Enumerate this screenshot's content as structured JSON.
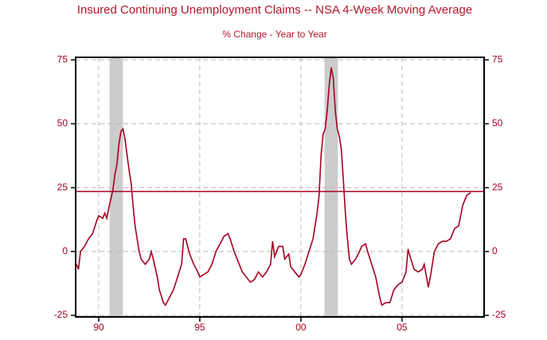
{
  "chart_data": {
    "type": "line",
    "title": "Insured Continuing Unemployment Claims -- NSA 4-Week Moving Average",
    "subtitle": "% Change - Year to Year",
    "x": [
      1988.9,
      1989.0,
      1989.1,
      1989.3,
      1989.5,
      1989.7,
      1989.9,
      1990.0,
      1990.2,
      1990.3,
      1990.4,
      1990.5,
      1990.7,
      1990.8,
      1990.9,
      1991.0,
      1991.1,
      1991.2,
      1991.3,
      1991.4,
      1991.5,
      1991.6,
      1991.7,
      1991.8,
      1991.9,
      1992.0,
      1992.1,
      1992.3,
      1992.5,
      1992.6,
      1992.7,
      1992.9,
      1993.0,
      1993.2,
      1993.3,
      1993.5,
      1993.7,
      1993.9,
      1994.1,
      1994.2,
      1994.3,
      1994.5,
      1994.7,
      1994.9,
      1995.0,
      1995.2,
      1995.4,
      1995.6,
      1995.8,
      1996.0,
      1996.2,
      1996.4,
      1996.5,
      1996.7,
      1996.9,
      1997.1,
      1997.3,
      1997.5,
      1997.7,
      1997.9,
      1998.1,
      1998.3,
      1998.5,
      1998.6,
      1998.7,
      1998.9,
      1999.1,
      1999.2,
      1999.4,
      1999.5,
      1999.7,
      1999.9,
      2000.0,
      2000.2,
      2000.4,
      2000.6,
      2000.8,
      2000.9,
      2001.0,
      2001.1,
      2001.2,
      2001.3,
      2001.4,
      2001.5,
      2001.6,
      2001.7,
      2001.8,
      2001.9,
      2002.0,
      2002.1,
      2002.2,
      2002.3,
      2002.4,
      2002.5,
      2002.7,
      2002.9,
      2003.0,
      2003.2,
      2003.3,
      2003.5,
      2003.7,
      2003.9,
      2004.0,
      2004.2,
      2004.4,
      2004.6,
      2004.8,
      2005.0,
      2005.2,
      2005.3,
      2005.4,
      2005.6,
      2005.8,
      2006.0,
      2006.1,
      2006.3,
      2006.4,
      2006.6,
      2006.8,
      2007.0,
      2007.2,
      2007.4,
      2007.6,
      2007.8,
      2008.0,
      2008.2,
      2008.4
    ],
    "series": [
      {
        "color": "#a50021",
        "values": [
          -5,
          -7,
          0,
          2,
          5,
          7,
          12,
          14,
          13,
          15,
          13,
          17,
          24,
          30,
          34,
          42,
          47,
          48,
          44,
          38,
          32,
          27,
          18,
          10,
          5,
          0,
          -3,
          -5,
          -3,
          0,
          -3,
          -10,
          -15,
          -20,
          -21,
          -18,
          -15,
          -10,
          -5,
          5,
          5,
          -1,
          -5,
          -8,
          -10,
          -9,
          -8,
          -5,
          0,
          3,
          6,
          7,
          5,
          0,
          -4,
          -8,
          -10,
          -12,
          -11,
          -8,
          -10,
          -8,
          -5,
          4,
          -2,
          2,
          2,
          -3,
          -1,
          -6,
          -8,
          -10,
          -9,
          -5,
          0,
          5,
          15,
          22,
          38,
          46,
          48,
          55,
          65,
          72,
          68,
          55,
          48,
          45,
          40,
          28,
          15,
          5,
          -3,
          -5,
          -3,
          0,
          2,
          3,
          0,
          -5,
          -10,
          -18,
          -21,
          -20,
          -20,
          -15,
          -13,
          -12,
          -8,
          1,
          -2,
          -7,
          -8,
          -7,
          -5,
          -14,
          -10,
          0,
          3,
          4,
          4,
          5,
          9,
          10,
          18,
          22,
          23
        ]
      }
    ],
    "reference_line": 23.5,
    "recessions": [
      [
        1990.54,
        1991.2
      ],
      [
        2001.17,
        2001.83
      ]
    ],
    "xlim": [
      1988.86,
      2009.06
    ],
    "xticks": [
      {
        "value": 1990,
        "label": "90"
      },
      {
        "value": 1995,
        "label": "95"
      },
      {
        "value": 2000,
        "label": "00"
      },
      {
        "value": 2005,
        "label": "05"
      }
    ],
    "ylim": [
      -25.6,
      76
    ],
    "yticks": [
      -25,
      0,
      25,
      50,
      75
    ],
    "y2lim": [
      -25.6,
      76
    ],
    "y2ticks": [
      -25,
      0,
      25,
      50,
      75
    ],
    "grid": true
  }
}
